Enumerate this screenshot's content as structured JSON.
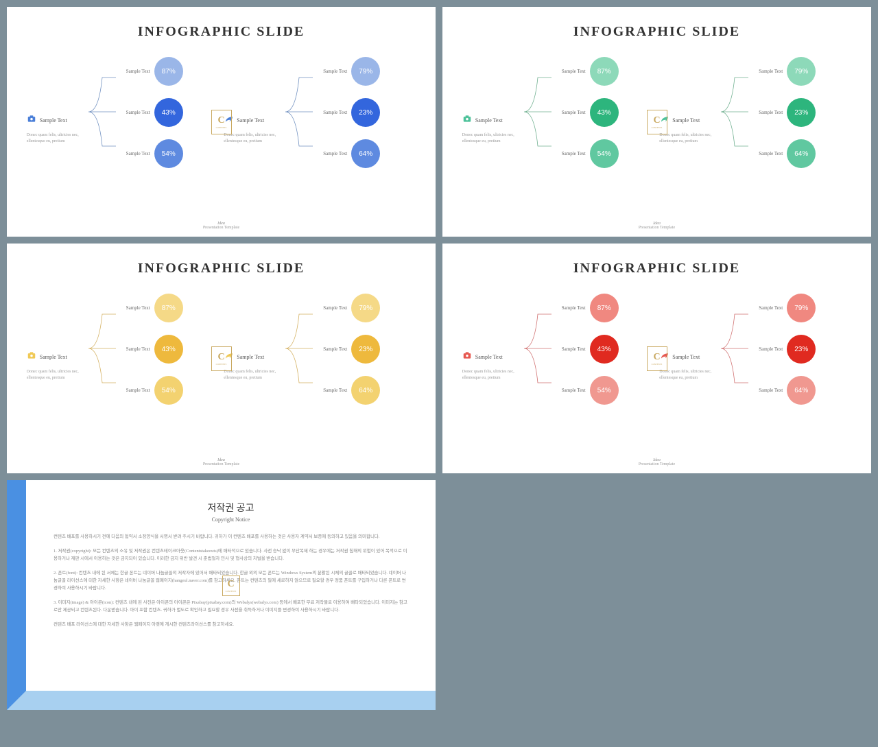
{
  "slide_title": "INFOGRAPHIC SLIDE",
  "sample_text": "Sample Text",
  "desc": "Donec quam felis, ultricies nec, ellentesque eu, pretium",
  "footer_title": "Idea",
  "footer_sub": "Presentation Template",
  "logo_main": "C",
  "logo_sub": "CONTENTS",
  "groups": [
    {
      "icon": "camera",
      "values": [
        "87%",
        "43%",
        "54%"
      ]
    },
    {
      "icon": "leaf",
      "values": [
        "79%",
        "23%",
        "64%"
      ]
    }
  ],
  "themes": [
    {
      "icon_color": "#4a7fd8",
      "circles": [
        "#9ab6e8",
        "#3366dd",
        "#5e8ae0"
      ],
      "line": "#7090c0"
    },
    {
      "icon_color": "#4ec29a",
      "circles": [
        "#8dd9b9",
        "#2db57d",
        "#60c8a0"
      ],
      "line": "#70b090"
    },
    {
      "icon_color": "#f0c955",
      "circles": [
        "#f5d987",
        "#eeb93d",
        "#f3d270"
      ],
      "line": "#d4b060"
    },
    {
      "icon_color": "#e65850",
      "circles": [
        "#f08880",
        "#e02a20",
        "#f09890"
      ],
      "line": "#d07070"
    }
  ],
  "copyright": {
    "title": "저작권 공고",
    "subtitle": "Copyright Notice",
    "paragraphs": [
      "컨텐츠 배포를 사용하시기 전에 다음의 협약서 소정양식을 서명서 받려 주시기 바랍니다. 귀하가 이 컨텐츠 배포를 사용하는 것은 사용자 계약서 보증에 동의하고 있음을 의미합니다.",
      "1. 저작권(copyright): 모든 컨텐츠의 소유 및 저작권은 컨텐츠테이크아웃(Contentstakeouts)에 배타적으로 있습니다. 사전 승낙 없이 무단복제 하는 경우에는 저작권 침해의 위험이 있어 목적으로 이용하거나 재판 시에서 이용하는 것은 금지되어 있습니다. 이러한 금지 위반 발견 시 준법절차 민사 및 형사상의 처벌을 받습니다.",
      "2. 폰트(font): 컨텐츠 내에 된 서체는 한글 폰트는 네이버 나눔글꼴의 저작자에 있어서 배타되었습니다. 한글 외의 모든 폰트는 Windows System의 분활된 시체의 글꼴로 배타되었습니다. 네이버 나눔글꼴 라이선스에 대한 자세한 사항은 네이버 나눔글꼴 웹페이지(hangeul.naver.com)를 참고하세요. 폰트는 컨텐츠의 필에 세로하지 않으므로 필요할 경우 정품 폰트를 구입하거나 다른 폰트로 변경하여 사용하시기 바랍니다.",
      "3. 이미지(image) & 아이콘(icon): 컨텐츠 내에 된 사진은 아이콘의 아이콘은 Pixabay(pixabay.com)의 Webalys(webalys.com) 등에서 배포한 무료 저작물로 이용하여 배타되었습니다. 이미지는 참고로만 제공되고 컨텐츠된다. 다운받습니다. 아이 포함 컨텐츠. 귀하가 별도로 확인하고 필요할 경우 사전을 취득하거나 이미지를 변경하여 사용하시기 바랍니다.",
      "컨텐츠 배포 라이선스에 대한 자세한 사항은 웹페이지 아랫에 게시한 컨텐츠라이선스를 참고하세요."
    ]
  }
}
